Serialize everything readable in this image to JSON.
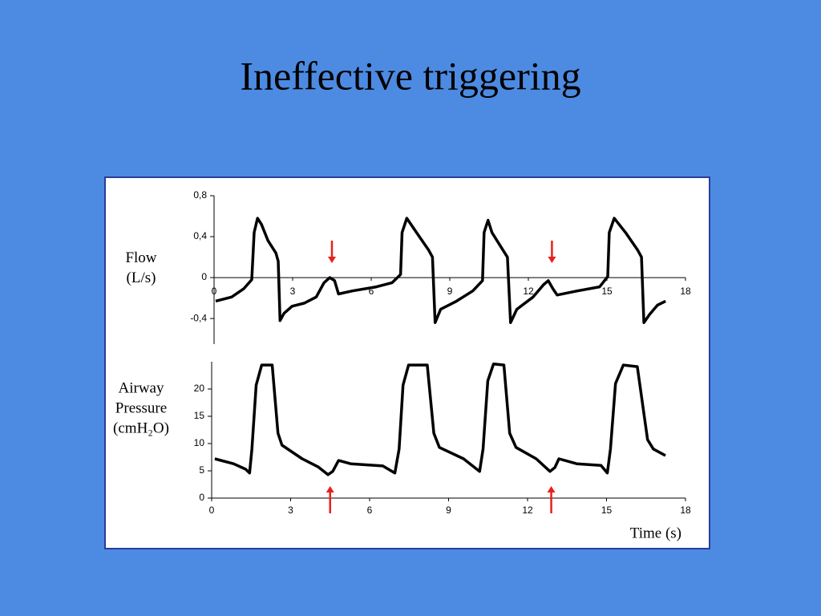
{
  "slide": {
    "title": "Ineffective triggering"
  },
  "chart_data": [
    {
      "type": "line",
      "ylabel": [
        "Flow",
        "(L/s)"
      ],
      "color": "#000000",
      "xlim": [
        0,
        18
      ],
      "xticks": [
        0,
        3,
        6,
        9,
        12,
        15,
        18
      ],
      "ylim": [
        -0.65,
        0.8
      ],
      "yticks": [
        {
          "value": 0.8,
          "label": "0,8"
        },
        {
          "value": 0.4,
          "label": "0,4"
        },
        0,
        {
          "value": -0.4,
          "label": "-0,4"
        }
      ],
      "x": [
        0.06,
        0.67,
        1.13,
        1.44,
        1.53,
        1.66,
        1.81,
        2.06,
        2.36,
        2.45,
        2.52,
        2.67,
        2.98,
        3.44,
        3.9,
        4.2,
        4.42,
        4.6,
        4.75,
        5.28,
        6.2,
        6.8,
        7.12,
        7.18,
        7.36,
        7.73,
        8.19,
        8.34,
        8.44,
        8.65,
        9.26,
        9.88,
        10.25,
        10.31,
        10.46,
        10.61,
        11.1,
        11.2,
        11.32,
        11.56,
        12.18,
        12.58,
        12.76,
        12.94,
        13.1,
        13.87,
        14.72,
        15.03,
        15.09,
        15.28,
        15.71,
        16.17,
        16.32,
        16.41,
        16.63,
        16.93,
        17.24
      ],
      "values": [
        -0.23,
        -0.19,
        -0.11,
        -0.02,
        0.44,
        0.58,
        0.52,
        0.36,
        0.24,
        0.16,
        -0.42,
        -0.35,
        -0.28,
        -0.25,
        -0.19,
        -0.05,
        0,
        -0.03,
        -0.16,
        -0.13,
        -0.09,
        -0.05,
        0.03,
        0.44,
        0.58,
        0.44,
        0.27,
        0.2,
        -0.44,
        -0.31,
        -0.23,
        -0.13,
        -0.03,
        0.44,
        0.56,
        0.44,
        0.24,
        0.2,
        -0.44,
        -0.31,
        -0.19,
        -0.07,
        -0.03,
        -0.11,
        -0.17,
        -0.13,
        -0.09,
        0.01,
        0.44,
        0.58,
        0.44,
        0.27,
        0.2,
        -0.44,
        -0.36,
        -0.27,
        -0.23
      ],
      "arrow_x": [
        4.5,
        12.9
      ],
      "arrow_direction": "down",
      "arrow_color": "#e8201c"
    },
    {
      "type": "line",
      "ylabel": [
        "Airway",
        "Pressure",
        "(cmH₂O)"
      ],
      "xlabel": "Time (s)",
      "color": "#000000",
      "xlim": [
        0,
        18
      ],
      "xticks": [
        0,
        3,
        6,
        9,
        12,
        15,
        18
      ],
      "ylim": [
        0,
        25
      ],
      "yticks": [
        0,
        5,
        10,
        15,
        20
      ],
      "x": [
        0.12,
        0.83,
        1.29,
        1.44,
        1.53,
        1.69,
        1.9,
        2.3,
        2.52,
        2.67,
        3.44,
        4.05,
        4.42,
        4.6,
        4.82,
        5.28,
        6.5,
        6.96,
        7.12,
        7.27,
        7.48,
        8.19,
        8.44,
        8.65,
        9.57,
        10.18,
        10.31,
        10.49,
        10.71,
        11.1,
        11.32,
        11.56,
        12.33,
        12.85,
        13.04,
        13.19,
        13.87,
        14.79,
        15.03,
        15.15,
        15.34,
        15.64,
        16.17,
        16.56,
        16.78,
        17.24
      ],
      "values": [
        7.2,
        6.3,
        5.3,
        4.6,
        9,
        20.7,
        24.4,
        24.4,
        11.9,
        9.7,
        7.2,
        5.7,
        4.3,
        4.9,
        6.9,
        6.3,
        5.9,
        4.6,
        9,
        20.7,
        24.4,
        24.4,
        11.9,
        9.3,
        7.2,
        4.9,
        9,
        21.5,
        24.6,
        24.4,
        11.9,
        9.3,
        7.2,
        4.9,
        5.6,
        7.2,
        6.3,
        6,
        4.6,
        9,
        21,
        24.4,
        24.1,
        10.7,
        9,
        7.8
      ],
      "arrow_x": [
        4.5,
        12.9
      ],
      "arrow_direction": "up",
      "arrow_color": "#e8201c"
    }
  ]
}
